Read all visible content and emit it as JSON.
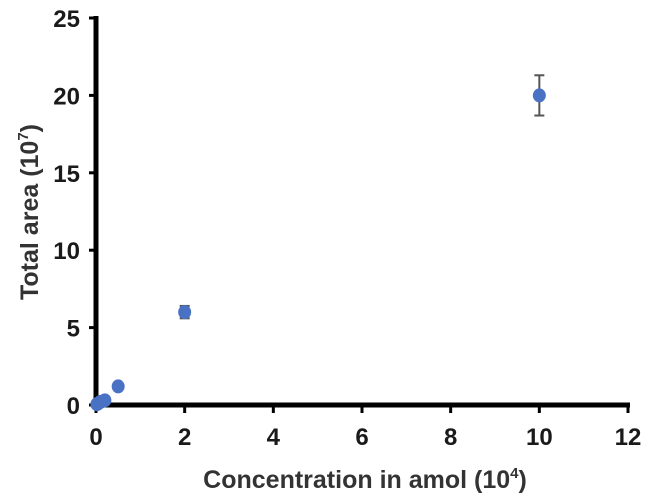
{
  "chart_data": {
    "type": "scatter",
    "title": "",
    "xlabel": {
      "text": "Concentration in amol (10",
      "sup": "4",
      "close": ")"
    },
    "ylabel": {
      "text": "Total area (10",
      "sup": "7",
      "close": ")"
    },
    "xlim": [
      0,
      12
    ],
    "ylim": [
      0,
      25
    ],
    "xticks": [
      0,
      2,
      4,
      6,
      8,
      10,
      12
    ],
    "yticks": [
      0,
      5,
      10,
      15,
      20,
      25
    ],
    "grid": false,
    "legend": "none",
    "series": [
      {
        "marker_color": "#4a72c4",
        "errorbar_color": "#555555",
        "points": [
          {
            "x": 0.02,
            "y": 0.05,
            "err": 0
          },
          {
            "x": 0.05,
            "y": 0.1,
            "err": 0
          },
          {
            "x": 0.1,
            "y": 0.2,
            "err": 0
          },
          {
            "x": 0.2,
            "y": 0.3,
            "err": 0
          },
          {
            "x": 0.5,
            "y": 1.2,
            "err": 0
          },
          {
            "x": 2,
            "y": 6.0,
            "err": 0.4
          },
          {
            "x": 10,
            "y": 20.0,
            "err": 1.3
          }
        ]
      }
    ]
  }
}
